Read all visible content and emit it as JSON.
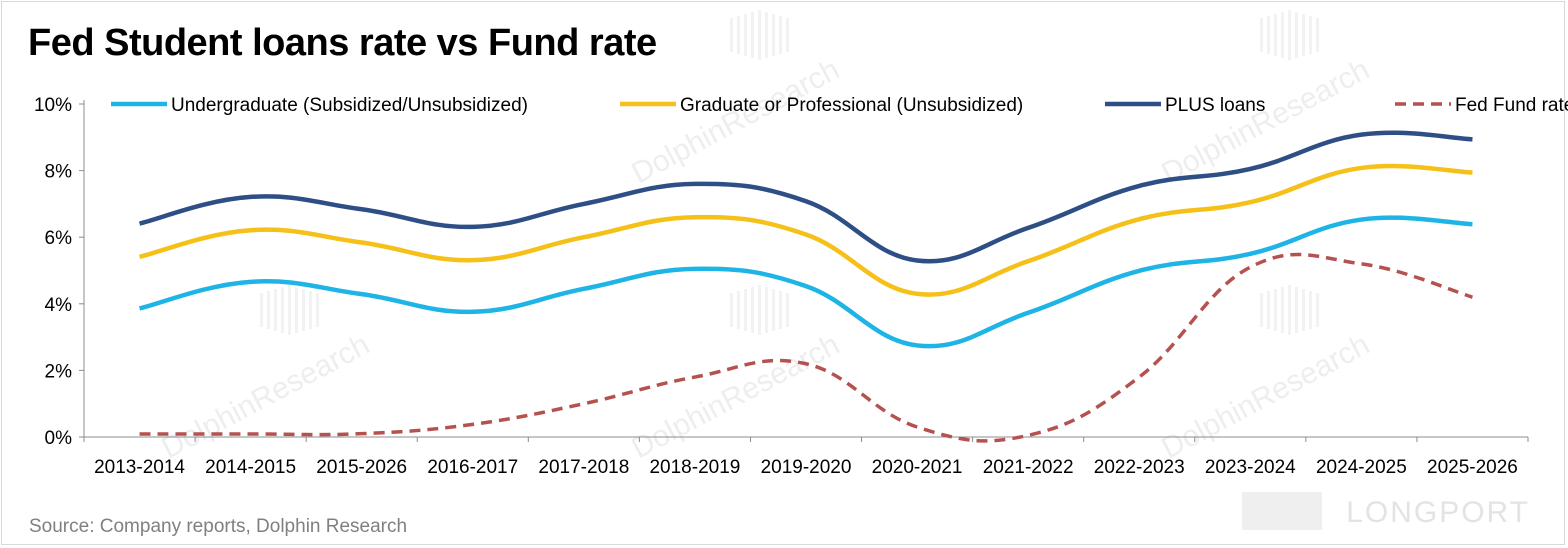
{
  "chart_data": {
    "type": "line",
    "title": "Fed Student loans rate vs Fund rate",
    "categories": [
      "2013-2014",
      "2014-2015",
      "2015-2026",
      "2016-2017",
      "2017-2018",
      "2018-2019",
      "2019-2020",
      "2020-2021",
      "2021-2022",
      "2022-2023",
      "2023-2024",
      "2024-2025",
      "2025-2026"
    ],
    "ylim": [
      0,
      10
    ],
    "yticks": [
      "0%",
      "2%",
      "4%",
      "6%",
      "8%",
      "10%"
    ],
    "legend_position": "top",
    "grid": false,
    "series": [
      {
        "name": "Undergraduate  (Subsidized/Unsubsidized)",
        "color": "#1fb4e6",
        "style": "solid",
        "values": [
          3.86,
          4.66,
          4.29,
          3.76,
          4.45,
          5.05,
          4.53,
          2.75,
          3.73,
          4.99,
          5.5,
          6.53,
          6.39
        ]
      },
      {
        "name": "Graduate or Professional (Unsubsidized)",
        "color": "#f5c018",
        "style": "solid",
        "values": [
          5.41,
          6.21,
          5.84,
          5.31,
          6.0,
          6.6,
          6.08,
          4.3,
          5.28,
          6.54,
          7.05,
          8.08,
          7.94
        ]
      },
      {
        "name": "PLUS loans",
        "color": "#2e4e86",
        "style": "solid",
        "values": [
          6.41,
          7.21,
          6.84,
          6.31,
          7.0,
          7.6,
          7.08,
          5.3,
          6.28,
          7.54,
          8.05,
          9.08,
          8.94
        ]
      },
      {
        "name": "Fed Fund rate",
        "color": "#b5514f",
        "style": "dashed",
        "values": [
          0.09,
          0.09,
          0.1,
          0.38,
          1.0,
          1.8,
          2.2,
          0.3,
          0.05,
          1.8,
          5.1,
          5.2,
          4.2
        ]
      }
    ]
  },
  "source": "Source: Company reports, Dolphin Research",
  "watermark": "DolphinResearch",
  "brand": "LONGPORT"
}
